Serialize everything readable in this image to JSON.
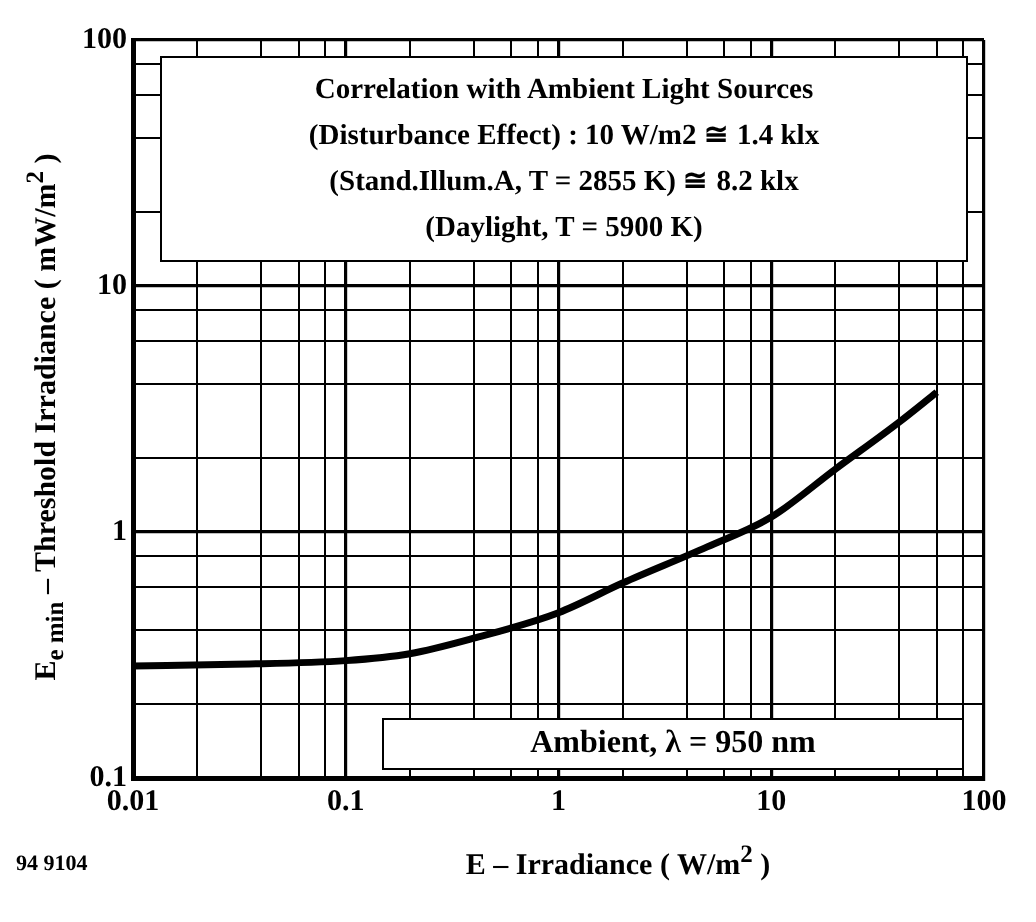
{
  "chart_data": {
    "type": "line",
    "xlabel": "E – Irradiance ( W/m$^{2}$ )",
    "ylabel": "E$_{e min}$ – Threshold Irradiance ( mW/m$^{2}$ )",
    "x": [
      0.01,
      0.03,
      0.1,
      0.2,
      0.4,
      1,
      2,
      5,
      10,
      20,
      40,
      60
    ],
    "series": [
      {
        "color": "#000000",
        "values": [
          0.285,
          0.29,
          0.3,
          0.32,
          0.37,
          0.47,
          0.62,
          0.87,
          1.15,
          1.8,
          2.8,
          3.7
        ]
      }
    ],
    "log": "xy",
    "xlim": [
      0.01,
      100
    ],
    "ylim": [
      0.1,
      100
    ],
    "xticks": [
      0.01,
      {
        "value": 0.02,
        "label": null
      },
      {
        "value": 0.04,
        "label": null
      },
      {
        "value": 0.06,
        "label": null
      },
      {
        "value": 0.08,
        "label": null
      },
      0.1,
      {
        "value": 0.2,
        "label": null
      },
      {
        "value": 0.4,
        "label": null
      },
      {
        "value": 0.6,
        "label": null
      },
      {
        "value": 0.8,
        "label": null
      },
      1,
      {
        "value": 2,
        "label": null
      },
      {
        "value": 4,
        "label": null
      },
      {
        "value": 6,
        "label": null
      },
      {
        "value": 8,
        "label": null
      },
      10,
      {
        "value": 20,
        "label": null
      },
      {
        "value": 40,
        "label": null
      },
      {
        "value": 60,
        "label": null
      },
      {
        "value": 80,
        "label": null
      },
      100
    ],
    "yticks": [
      0.1,
      {
        "value": 0.2,
        "label": null
      },
      {
        "value": 0.4,
        "label": null
      },
      {
        "value": 0.6,
        "label": null
      },
      {
        "value": 0.8,
        "label": null
      },
      1,
      {
        "value": 2,
        "label": null
      },
      {
        "value": 4,
        "label": null
      },
      {
        "value": 6,
        "label": null
      },
      {
        "value": 8,
        "label": null
      },
      10,
      {
        "value": 20,
        "label": null
      },
      {
        "value": 40,
        "label": null
      },
      {
        "value": 60,
        "label": null
      },
      {
        "value": 80,
        "label": null
      },
      100
    ],
    "grid": true,
    "marker": "none",
    "line_style": "solid",
    "annotations": [
      "Correlation with Ambient Light Sources",
      "(Disturbance Effect) : 10 W/m2 ≅ 1.4 klx",
      "(Stand.Illum.A, T = 2855 K) ≅ 8.2 klx",
      "(Daylight, T = 5900 K)",
      "Ambient, λ = 950 nm",
      "94 9104"
    ]
  }
}
